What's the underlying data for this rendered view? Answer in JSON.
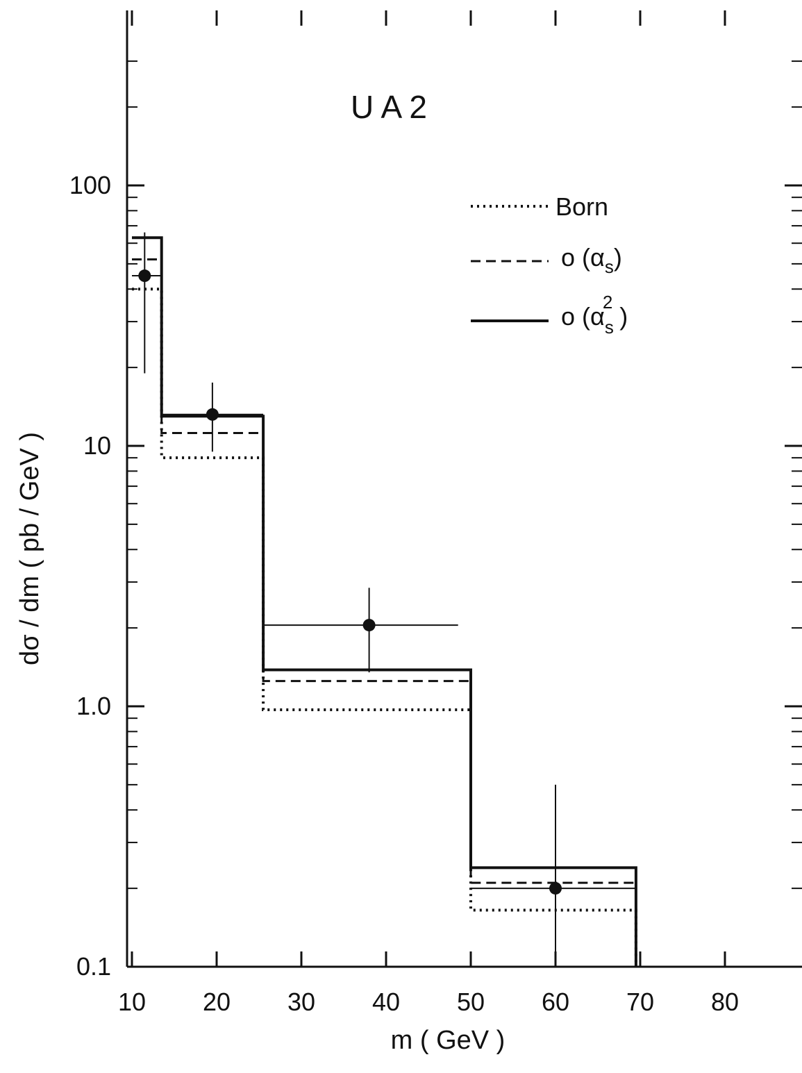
{
  "chart_data": {
    "type": "step",
    "title": "U A 2",
    "xlabel": "m  ( GeV )",
    "ylabel": "dσ / dm   ( pb / GeV )",
    "xlim": [
      10,
      89
    ],
    "ylim": [
      0.1,
      300
    ],
    "yscale": "log",
    "xticks": [
      10,
      20,
      30,
      40,
      50,
      60,
      70,
      80
    ],
    "xtick_labels": [
      "10",
      "20",
      "30",
      "40",
      "50",
      "60",
      "70",
      "80"
    ],
    "yticks": [
      0.1,
      1.0,
      10,
      100
    ],
    "ytick_labels": [
      "0.1",
      "1.0",
      "10",
      "100"
    ],
    "grid": false,
    "legend_position": "top-right",
    "bin_edges": [
      10,
      13.5,
      25.5,
      50,
      69.5
    ],
    "series": [
      {
        "name": "Born",
        "style": "dotted",
        "values": [
          40,
          9.0,
          0.97,
          0.165
        ]
      },
      {
        "name": "o (αs)",
        "style": "dashed",
        "values": [
          52,
          11.2,
          1.25,
          0.21
        ]
      },
      {
        "name": "o (αs²)",
        "style": "solid",
        "values": [
          63,
          13.0,
          1.38,
          0.24
        ]
      }
    ],
    "data_points": [
      {
        "x": 11.5,
        "y": 45,
        "y_err_low": 19,
        "y_err_high": 66,
        "x_low": 10,
        "x_high": 13.5
      },
      {
        "x": 19.5,
        "y": 13.2,
        "y_err_low": 9.5,
        "y_err_high": 17.5,
        "x_low": 13.5,
        "x_high": 25.5
      },
      {
        "x": 38,
        "y": 2.05,
        "y_err_low": 1.35,
        "y_err_high": 2.85,
        "x_low": 25.5,
        "x_high": 48.5
      },
      {
        "x": 60,
        "y": 0.2,
        "y_err_low": 0.1,
        "y_err_high": 0.5,
        "x_low": 50,
        "x_high": 69.5
      }
    ]
  },
  "legend": {
    "born": "Born",
    "o_alpha_prefix": "o (α",
    "o_alpha_sub": "s",
    "o_alpha_suffix": ")",
    "o_alpha2_prefix": "o (α",
    "o_alpha2_sub": "s",
    "o_alpha2_sup": "2",
    "o_alpha2_suffix": " )"
  }
}
